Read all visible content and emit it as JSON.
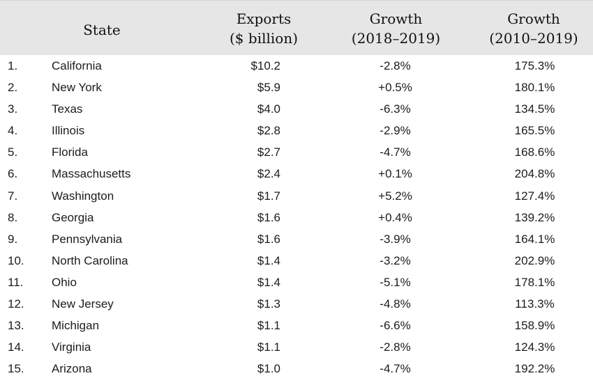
{
  "header": {
    "state": "State",
    "exports": "Exports\n($ billion)",
    "growth_1": "Growth\n(2018–2019)",
    "growth_2": "Growth\n(2010–2019)"
  },
  "rows": [
    {
      "rank": "1.",
      "state": "California",
      "exports": "$10.2",
      "growth_1": "-2.8%",
      "growth_2": "175.3%"
    },
    {
      "rank": "2.",
      "state": "New York",
      "exports": "$5.9",
      "growth_1": "+0.5%",
      "growth_2": "180.1%"
    },
    {
      "rank": "3.",
      "state": "Texas",
      "exports": "$4.0",
      "growth_1": "-6.3%",
      "growth_2": "134.5%"
    },
    {
      "rank": "4.",
      "state": "Illinois",
      "exports": "$2.8",
      "growth_1": "-2.9%",
      "growth_2": "165.5%"
    },
    {
      "rank": "5.",
      "state": "Florida",
      "exports": "$2.7",
      "growth_1": "-4.7%",
      "growth_2": "168.6%"
    },
    {
      "rank": "6.",
      "state": "Massachusetts",
      "exports": "$2.4",
      "growth_1": "+0.1%",
      "growth_2": "204.8%"
    },
    {
      "rank": "7.",
      "state": "Washington",
      "exports": "$1.7",
      "growth_1": "+5.2%",
      "growth_2": "127.4%"
    },
    {
      "rank": "8.",
      "state": "Georgia",
      "exports": "$1.6",
      "growth_1": "+0.4%",
      "growth_2": "139.2%"
    },
    {
      "rank": "9.",
      "state": "Pennsylvania",
      "exports": "$1.6",
      "growth_1": "-3.9%",
      "growth_2": "164.1%"
    },
    {
      "rank": "10.",
      "state": "North Carolina",
      "exports": "$1.4",
      "growth_1": "-3.2%",
      "growth_2": "202.9%"
    },
    {
      "rank": "11.",
      "state": "Ohio",
      "exports": "$1.4",
      "growth_1": "-5.1%",
      "growth_2": "178.1%"
    },
    {
      "rank": "12.",
      "state": "New Jersey",
      "exports": "$1.3",
      "growth_1": "-4.8%",
      "growth_2": "113.3%"
    },
    {
      "rank": "13.",
      "state": "Michigan",
      "exports": "$1.1",
      "growth_1": "-6.6%",
      "growth_2": "158.9%"
    },
    {
      "rank": "14.",
      "state": "Virginia",
      "exports": "$1.1",
      "growth_1": "-2.8%",
      "growth_2": "124.3%"
    },
    {
      "rank": "15.",
      "state": "Arizona",
      "exports": "$1.0",
      "growth_1": "-4.7%",
      "growth_2": "192.2%"
    }
  ]
}
